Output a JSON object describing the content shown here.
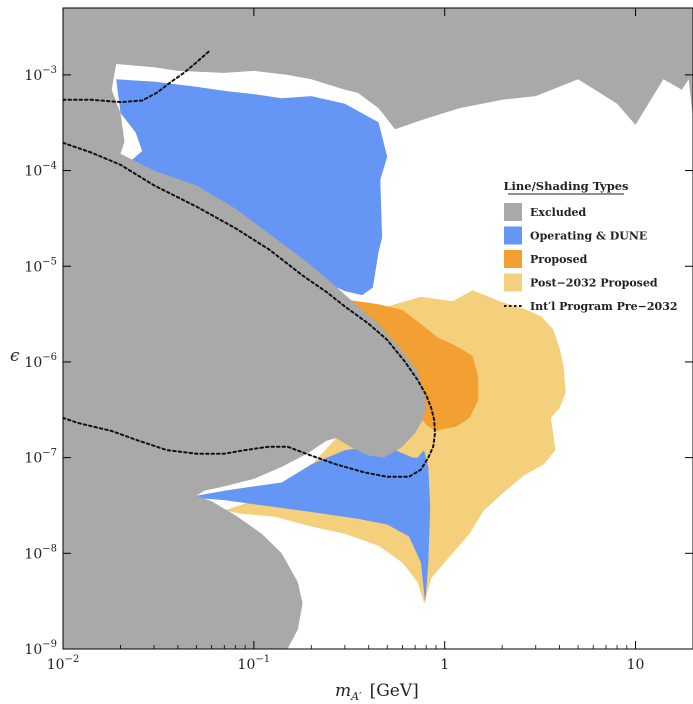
{
  "chart_data": {
    "type": "area",
    "title": "",
    "xlabel_base": "m",
    "xlabel_sub": "A′",
    "xlabel_unit": "[GeV]",
    "ylabel": "ϵ",
    "x_scale": "log",
    "y_scale": "log",
    "xlim": [
      0.01,
      20
    ],
    "ylim": [
      1e-09,
      0.005
    ],
    "x_ticks": [
      {
        "value": 0.01,
        "base": "10",
        "exp": "−2"
      },
      {
        "value": 0.1,
        "base": "10",
        "exp": "−1"
      },
      {
        "value": 1,
        "base": "1",
        "exp": ""
      },
      {
        "value": 10,
        "base": "10",
        "exp": ""
      }
    ],
    "y_ticks": [
      {
        "value": 1e-09,
        "base": "10",
        "exp": "−9"
      },
      {
        "value": 1e-08,
        "base": "10",
        "exp": "−8"
      },
      {
        "value": 1e-07,
        "base": "10",
        "exp": "−7"
      },
      {
        "value": 1e-06,
        "base": "10",
        "exp": "−6"
      },
      {
        "value": 1e-05,
        "base": "10",
        "exp": "−5"
      },
      {
        "value": 0.0001,
        "base": "10",
        "exp": "−4"
      },
      {
        "value": 0.001,
        "base": "10",
        "exp": "−3"
      }
    ],
    "grid": false,
    "legend_position": "right",
    "legend_title": "Line/Shading Types",
    "colors": {
      "excluded": "#a9a9a9",
      "operating": "#6595f5",
      "proposed": "#f2a032",
      "post2032": "#f5d07c",
      "program": "#111111"
    },
    "series": [
      {
        "name": "Post−2032 Proposed",
        "kind": "region",
        "color": "#f5d07c",
        "points": [
          [
            0.21,
            4.5e-06
          ],
          [
            0.33,
            3.2e-06
          ],
          [
            0.5,
            3.8e-06
          ],
          [
            0.75,
            4.8e-06
          ],
          [
            1.1,
            4.3e-06
          ],
          [
            1.4,
            5.6e-06
          ],
          [
            2.0,
            4.2e-06
          ],
          [
            2.6,
            3.6e-06
          ],
          [
            3.2,
            3e-06
          ],
          [
            3.7,
            2.2e-06
          ],
          [
            4.0,
            1.4e-06
          ],
          [
            4.2,
            9e-07
          ],
          [
            4.3,
            4.8e-07
          ],
          [
            4.0,
            3.3e-07
          ],
          [
            3.6,
            2.6e-07
          ],
          [
            3.7,
            1.8e-07
          ],
          [
            3.8,
            1.2e-07
          ],
          [
            3.3,
            8.5e-08
          ],
          [
            2.6,
            6.5e-08
          ],
          [
            2.0,
            4.2e-08
          ],
          [
            1.6,
            2.8e-08
          ],
          [
            1.35,
            1.6e-08
          ],
          [
            1.05,
            9e-09
          ],
          [
            0.85,
            5.5e-09
          ],
          [
            0.78,
            3e-09
          ],
          [
            0.72,
            5e-09
          ],
          [
            0.6,
            8e-09
          ],
          [
            0.45,
            1.2e-08
          ],
          [
            0.3,
            1.6e-08
          ],
          [
            0.2,
            1.9e-08
          ],
          [
            0.13,
            2.4e-08
          ],
          [
            0.085,
            2.6e-08
          ],
          [
            0.07,
            2.8e-08
          ],
          [
            0.085,
            3.2e-08
          ],
          [
            0.15,
            4.5e-08
          ],
          [
            0.3,
            2e-07
          ],
          [
            0.4,
            6e-07
          ],
          [
            0.2,
            4.5e-06
          ]
        ]
      },
      {
        "name": "Operating & DUNE",
        "kind": "region",
        "color": "#6595f5",
        "points": [
          [
            0.019,
            0.0009
          ],
          [
            0.03,
            0.00085
          ],
          [
            0.05,
            0.00075
          ],
          [
            0.07,
            0.00068
          ],
          [
            0.1,
            0.00063
          ],
          [
            0.14,
            0.00057
          ],
          [
            0.2,
            0.0006
          ],
          [
            0.3,
            0.0005
          ],
          [
            0.45,
            0.00032
          ],
          [
            0.5,
            0.00014
          ],
          [
            0.46,
            8e-05
          ],
          [
            0.47,
            2e-05
          ],
          [
            0.45,
            1.4e-05
          ],
          [
            0.42,
            6e-06
          ],
          [
            0.37,
            5e-06
          ],
          [
            0.3,
            5.5e-06
          ],
          [
            0.25,
            6.5e-06
          ],
          [
            0.2,
            7e-06
          ],
          [
            0.15,
            1e-05
          ],
          [
            0.1,
            1.5e-05
          ],
          [
            0.07,
            2.2e-05
          ],
          [
            0.045,
            3e-05
          ],
          [
            0.03,
            4e-05
          ],
          [
            0.023,
            6e-05
          ],
          [
            0.019,
            8.5e-05
          ],
          [
            0.022,
            0.00012
          ],
          [
            0.026,
            0.00016
          ],
          [
            0.024,
            0.00025
          ],
          [
            0.02,
            0.0004
          ]
        ]
      },
      {
        "name": "Operating & DUNE (low ε)",
        "kind": "region",
        "color": "#6595f5",
        "points": [
          [
            0.035,
            4e-08
          ],
          [
            0.05,
            4e-08
          ],
          [
            0.07,
            4.5e-08
          ],
          [
            0.1,
            5e-08
          ],
          [
            0.14,
            5.5e-08
          ],
          [
            0.2,
            8.5e-08
          ],
          [
            0.3,
            1.2e-07
          ],
          [
            0.4,
            1.3e-07
          ],
          [
            0.55,
            1.2e-07
          ],
          [
            0.68,
            1e-07
          ],
          [
            0.72,
            1e-07
          ],
          [
            0.78,
            1.2e-07
          ],
          [
            0.82,
            8e-08
          ],
          [
            0.84,
            3e-08
          ],
          [
            0.82,
            8e-09
          ],
          [
            0.79,
            3e-09
          ],
          [
            0.75,
            8e-09
          ],
          [
            0.65,
            1.5e-08
          ],
          [
            0.5,
            2e-08
          ],
          [
            0.35,
            2.3e-08
          ],
          [
            0.2,
            2.7e-08
          ],
          [
            0.12,
            3.1e-08
          ],
          [
            0.07,
            3.6e-08
          ]
        ]
      },
      {
        "name": "Proposed",
        "kind": "region",
        "color": "#f2a032",
        "points": [
          [
            0.2,
            4.5e-06
          ],
          [
            0.3,
            4.5e-06
          ],
          [
            0.45,
            4e-06
          ],
          [
            0.6,
            3.5e-06
          ],
          [
            0.75,
            2.5e-06
          ],
          [
            0.92,
            1.8e-06
          ],
          [
            1.05,
            1.6e-06
          ],
          [
            1.2,
            1.4e-06
          ],
          [
            1.4,
            1.15e-06
          ],
          [
            1.5,
            7e-07
          ],
          [
            1.5,
            4e-07
          ],
          [
            1.35,
            2.6e-07
          ],
          [
            1.15,
            2.1e-07
          ],
          [
            1.0,
            2e-07
          ],
          [
            0.9,
            1.9e-07
          ],
          [
            0.8,
            2.2e-07
          ],
          [
            0.7,
            3.2e-07
          ],
          [
            0.6,
            4.5e-07
          ],
          [
            0.45,
            9e-07
          ],
          [
            0.3,
            2.2e-06
          ],
          [
            0.2,
            3.7e-06
          ]
        ]
      },
      {
        "name": "Excluded",
        "kind": "region",
        "color": "#a9a9a9",
        "points": [
          [
            0.01,
            0.005
          ],
          [
            20,
            0.005
          ],
          [
            20,
            0.00035
          ],
          [
            19,
            0.0009
          ],
          [
            17.5,
            0.0007
          ],
          [
            14,
            0.0009
          ],
          [
            10,
            0.0003
          ],
          [
            8,
            0.0005
          ],
          [
            5,
            0.0009
          ],
          [
            3,
            0.0006
          ],
          [
            2,
            0.00055
          ],
          [
            1.2,
            0.00045
          ],
          [
            0.8,
            0.00035
          ],
          [
            0.55,
            0.00027
          ],
          [
            0.45,
            0.00045
          ],
          [
            0.35,
            0.00065
          ],
          [
            0.3,
            0.0007
          ],
          [
            0.2,
            0.0009
          ],
          [
            0.15,
            0.001
          ],
          [
            0.1,
            0.0011
          ],
          [
            0.07,
            0.00105
          ],
          [
            0.04,
            0.0011
          ],
          [
            0.03,
            0.0012
          ],
          [
            0.019,
            0.0013
          ],
          [
            0.018,
            0.0007
          ],
          [
            0.02,
            0.0004
          ],
          [
            0.021,
            0.0002
          ],
          [
            0.02,
            0.00015
          ],
          [
            0.025,
            0.00012
          ],
          [
            0.03,
            0.0001
          ],
          [
            0.05,
            7e-05
          ],
          [
            0.08,
            4e-05
          ],
          [
            0.12,
            2.2e-05
          ],
          [
            0.18,
            1.2e-05
          ],
          [
            0.25,
            7e-06
          ],
          [
            0.32,
            4.5e-06
          ],
          [
            0.45,
            2.5e-06
          ],
          [
            0.6,
            1.3e-06
          ],
          [
            0.72,
            8e-07
          ],
          [
            0.78,
            5e-07
          ],
          [
            0.8,
            3.5e-07
          ],
          [
            0.77,
            2.5e-07
          ],
          [
            0.7,
            1.8e-07
          ],
          [
            0.6,
            1.3e-07
          ],
          [
            0.48,
            1e-07
          ],
          [
            0.4,
            1.05e-07
          ],
          [
            0.32,
            1.3e-07
          ],
          [
            0.27,
            1.6e-07
          ],
          [
            0.24,
            1.5e-07
          ],
          [
            0.19,
            1.1e-07
          ],
          [
            0.14,
            8e-08
          ],
          [
            0.1,
            6e-08
          ],
          [
            0.07,
            5e-08
          ],
          [
            0.055,
            4.5e-08
          ],
          [
            0.05,
            4e-08
          ],
          [
            0.06,
            3.5e-08
          ],
          [
            0.08,
            2.5e-08
          ],
          [
            0.11,
            1.6e-08
          ],
          [
            0.14,
            1e-08
          ],
          [
            0.17,
            5e-09
          ],
          [
            0.18,
            3e-09
          ],
          [
            0.17,
            1.6e-09
          ],
          [
            0.15,
            1e-09
          ],
          [
            0.01,
            1e-09
          ]
        ]
      },
      {
        "name": "Int′l Program Pre−2032",
        "kind": "line",
        "dashed": true,
        "color": "#111111",
        "points": [
          [
            0.01,
            0.000195
          ],
          [
            0.014,
            0.000155
          ],
          [
            0.02,
            0.000115
          ],
          [
            0.03,
            7e-05
          ],
          [
            0.05,
            4.2e-05
          ],
          [
            0.08,
            2.5e-05
          ],
          [
            0.12,
            1.5e-05
          ],
          [
            0.18,
            8e-06
          ],
          [
            0.24,
            5.4e-06
          ],
          [
            0.3,
            3.8e-06
          ],
          [
            0.4,
            2.5e-06
          ],
          [
            0.5,
            1.7e-06
          ],
          [
            0.62,
            1e-06
          ],
          [
            0.72,
            6.5e-07
          ],
          [
            0.8,
            4.5e-07
          ],
          [
            0.85,
            3.3e-07
          ],
          [
            0.88,
            2.5e-07
          ],
          [
            0.89,
            1.8e-07
          ],
          [
            0.87,
            1.3e-07
          ],
          [
            0.82,
            1e-07
          ],
          [
            0.75,
            7.5e-08
          ],
          [
            0.65,
            6.3e-08
          ],
          [
            0.5,
            6.3e-08
          ],
          [
            0.38,
            7e-08
          ],
          [
            0.27,
            8.5e-08
          ],
          [
            0.2,
            1.05e-07
          ],
          [
            0.15,
            1.3e-07
          ],
          [
            0.12,
            1.3e-07
          ],
          [
            0.09,
            1.2e-07
          ],
          [
            0.07,
            1.1e-07
          ],
          [
            0.05,
            1.1e-07
          ],
          [
            0.035,
            1.2e-07
          ],
          [
            0.025,
            1.5e-07
          ],
          [
            0.018,
            1.9e-07
          ],
          [
            0.012,
            2.3e-07
          ],
          [
            0.01,
            2.6e-07
          ]
        ]
      },
      {
        "name": "Int′l Program Pre−2032 (upper)",
        "kind": "line",
        "dashed": true,
        "color": "#111111",
        "points": [
          [
            0.01,
            0.00055
          ],
          [
            0.014,
            0.00055
          ],
          [
            0.02,
            0.00052
          ],
          [
            0.026,
            0.00054
          ],
          [
            0.031,
            0.00065
          ],
          [
            0.037,
            0.00085
          ],
          [
            0.043,
            0.00105
          ],
          [
            0.05,
            0.00135
          ],
          [
            0.058,
            0.00175
          ]
        ]
      }
    ],
    "legend": [
      {
        "label": "Excluded",
        "color": "#a9a9a9",
        "kind": "swatch"
      },
      {
        "label": "Operating & DUNE",
        "color": "#6595f5",
        "kind": "swatch"
      },
      {
        "label": "Proposed",
        "color": "#f2a032",
        "kind": "swatch"
      },
      {
        "label": "Post−2032 Proposed",
        "color": "#f5d07c",
        "kind": "swatch"
      },
      {
        "label": "Int′l Program Pre−2032",
        "color": "#111111",
        "kind": "dashed"
      }
    ]
  }
}
